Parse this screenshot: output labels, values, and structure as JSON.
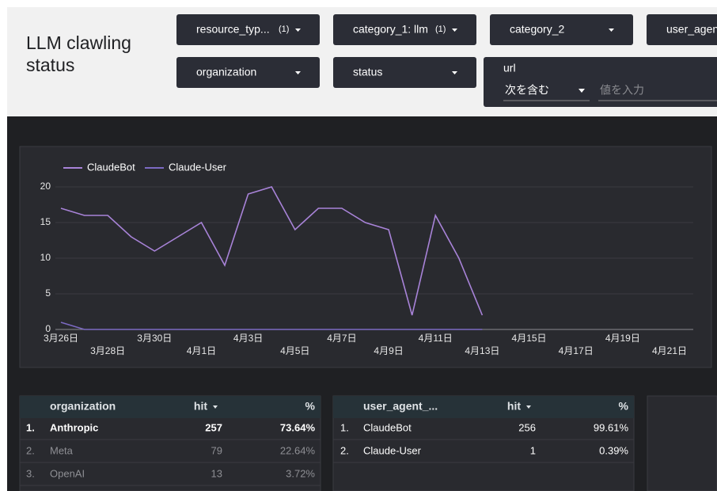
{
  "header": {
    "title": "LLM clawling status"
  },
  "filters": [
    {
      "label": "resource_typ...",
      "count": "(1)"
    },
    {
      "label": "category_1: llm",
      "count": "(1)"
    },
    {
      "label": "category_2"
    },
    {
      "label": "user_agen"
    },
    {
      "label": "organization"
    },
    {
      "label": "status"
    }
  ],
  "url_filter": {
    "label": "url",
    "operator": "次を含む",
    "placeholder": "値を入力"
  },
  "chart_data": {
    "type": "line",
    "categories": [
      "3月26日",
      null,
      "3月28日",
      null,
      "3月30日",
      null,
      "4月1日",
      null,
      "4月3日",
      null,
      "4月5日",
      null,
      "4月7日",
      null,
      "4月9日",
      null,
      "4月11日",
      null,
      "4月13日",
      null,
      "4月15日",
      null,
      "4月17日",
      null,
      "4月19日",
      null,
      "4月21日"
    ],
    "series": [
      {
        "name": "ClaudeBot",
        "color": "#a883d8",
        "values": [
          17,
          16,
          16,
          13,
          11,
          13,
          15,
          9,
          19,
          20,
          14,
          17,
          17,
          15,
          14,
          2,
          16,
          10,
          2,
          null,
          null,
          null,
          null,
          null,
          null,
          null,
          null
        ]
      },
      {
        "name": "Claude-User",
        "color": "#7c6ac2",
        "values": [
          1,
          0,
          0,
          0,
          0,
          0,
          0,
          0,
          0,
          0,
          0,
          0,
          0,
          0,
          0,
          0,
          0,
          0,
          0,
          null,
          null,
          null,
          null,
          null,
          null,
          null,
          null
        ]
      }
    ],
    "ylim": [
      0,
      20
    ],
    "yticks": [
      0,
      5,
      10,
      15,
      20
    ],
    "grid": true,
    "legend": "top-left"
  },
  "tables": [
    {
      "columns": [
        "organization",
        "hit",
        "%"
      ],
      "rows": [
        [
          "1.",
          "Anthropic",
          "257",
          "73.64%"
        ],
        [
          "2.",
          "Meta",
          "79",
          "22.64%"
        ],
        [
          "3.",
          "OpenAI",
          "13",
          "3.72%"
        ]
      ]
    },
    {
      "columns": [
        "user_agent_...",
        "hit",
        "%"
      ],
      "rows": [
        [
          "1.",
          "ClaudeBot",
          "256",
          "99.61%"
        ],
        [
          "2.",
          "Claude-User",
          "1",
          "0.39%"
        ]
      ]
    }
  ]
}
